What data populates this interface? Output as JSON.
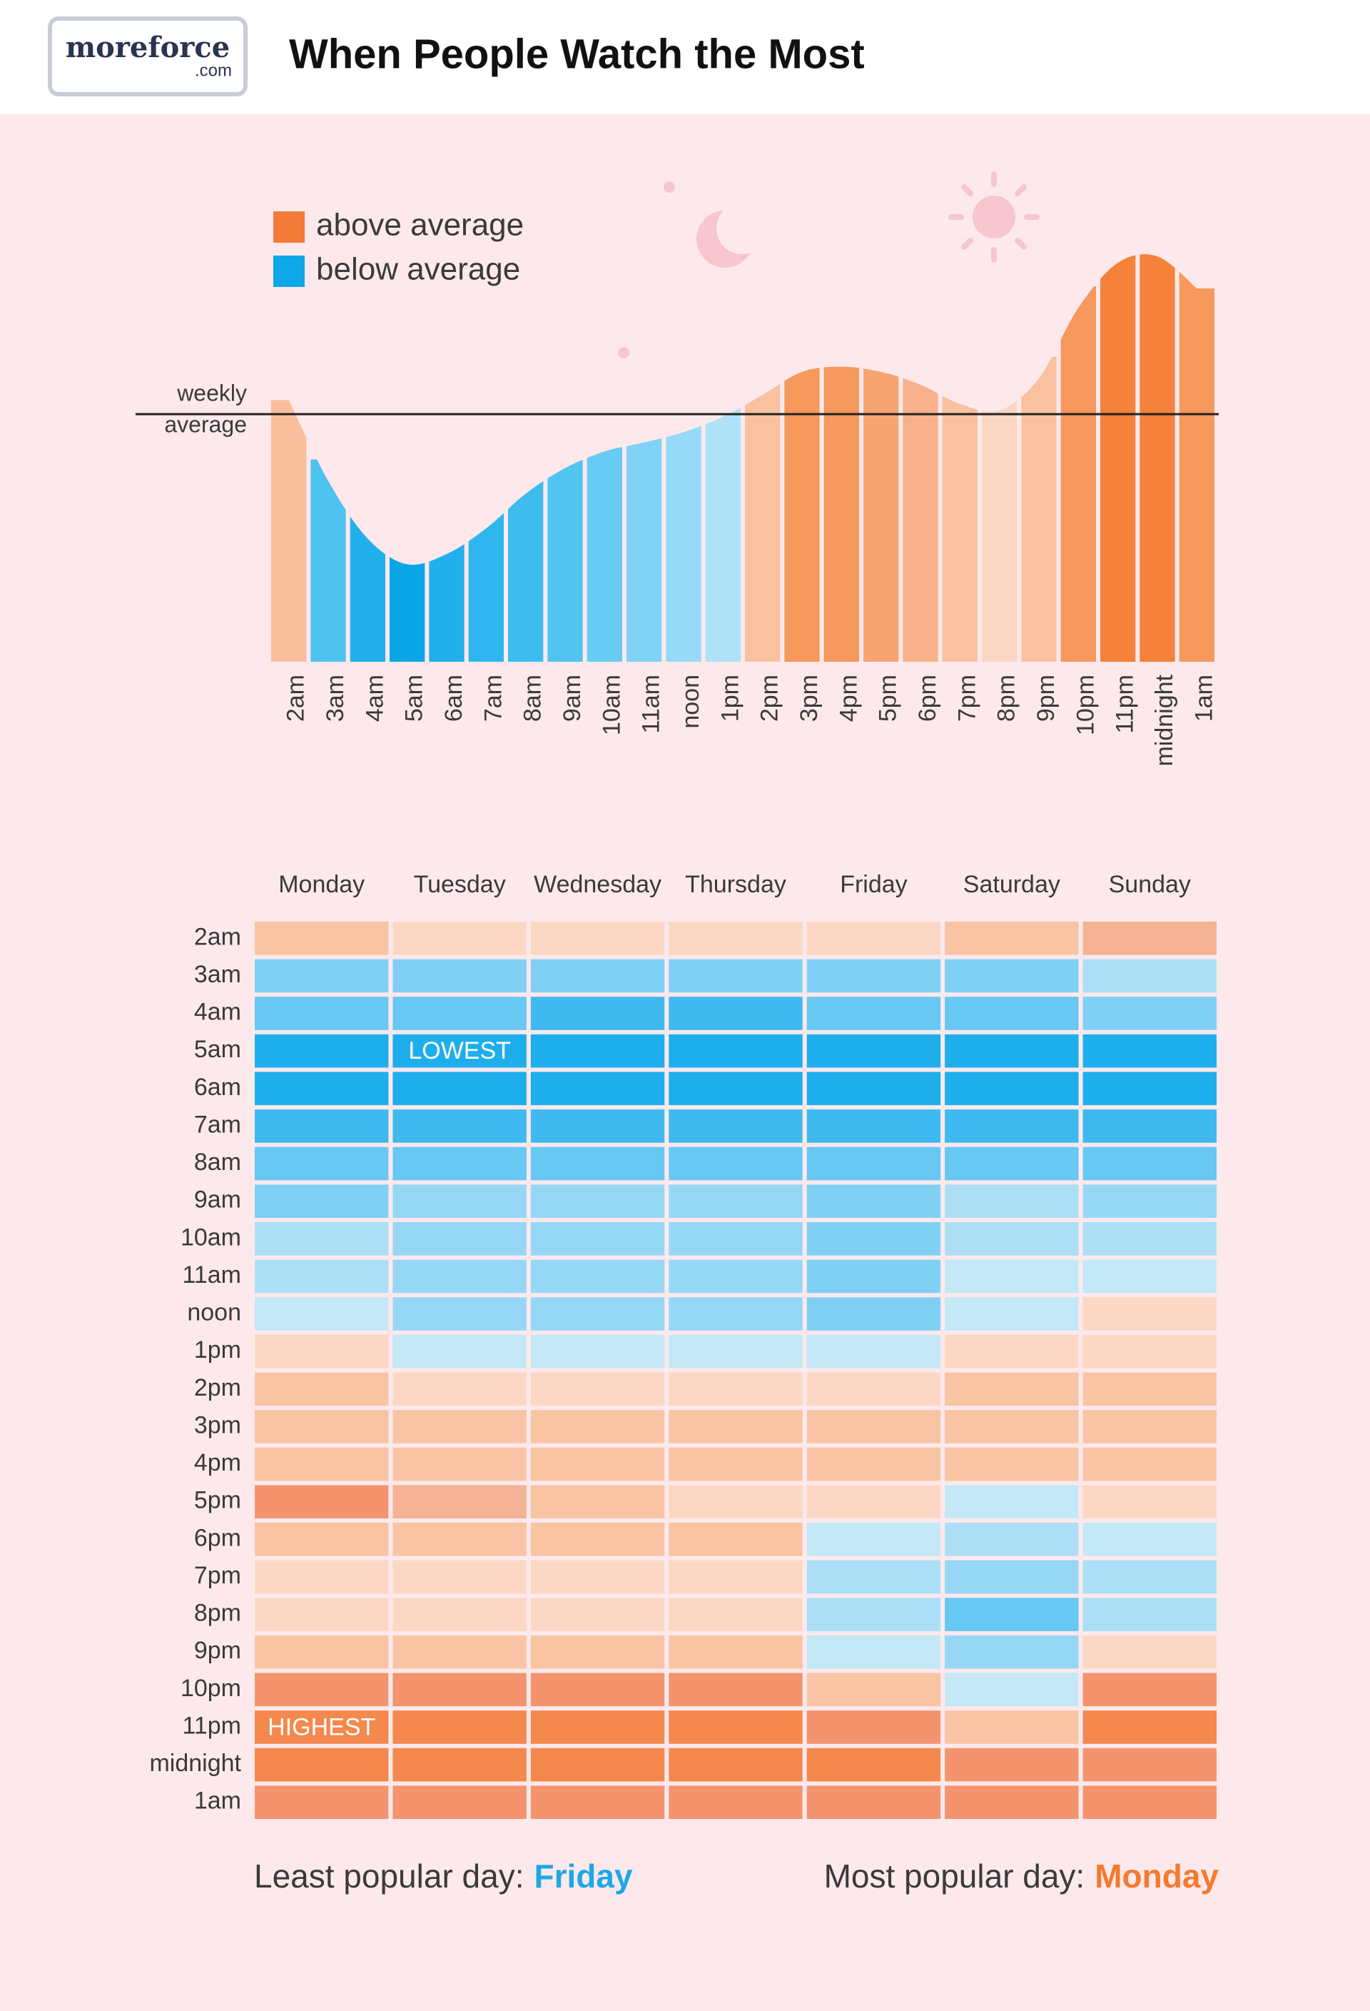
{
  "header": {
    "logo": "moreforce",
    "logo_sub": ".com",
    "title": "When People Watch the Most"
  },
  "chart_data": [
    {
      "type": "bar",
      "categories": [
        "2am",
        "3am",
        "4am",
        "5am",
        "6am",
        "7am",
        "8am",
        "9am",
        "10am",
        "11am",
        "noon",
        "1pm",
        "2pm",
        "3pm",
        "4pm",
        "5pm",
        "6pm",
        "7pm",
        "8pm",
        "9pm",
        "10pm",
        "11pm",
        "midnight",
        "1am"
      ],
      "values": [
        204,
        141,
        96,
        76,
        84,
        104,
        131,
        151,
        164,
        171,
        179,
        191,
        208,
        226,
        230,
        226,
        216,
        201,
        196,
        221,
        276,
        311,
        316,
        291
      ],
      "colors": [
        "#f9bf9c",
        "#4fc3f0",
        "#22b0ec",
        "#0aa6e8",
        "#22b0ec",
        "#2fb6ee",
        "#3dbcf0",
        "#52c4f2",
        "#68cbf4",
        "#7fd3f6",
        "#96daf7",
        "#aee2f8",
        "#f9c1a0",
        "#f7985c",
        "#f7985c",
        "#f8a472",
        "#f8b18a",
        "#f9c1a0",
        "#fbd6c2",
        "#f9c1a0",
        "#f7985c",
        "#f5823a",
        "#f5823a",
        "#f7985c"
      ],
      "ylim": [
        0,
        330
      ],
      "reference_line": {
        "value": 193,
        "label": [
          "weekly",
          "average"
        ]
      },
      "legend": [
        {
          "label": "above average",
          "color": "#f47a3a"
        },
        {
          "label": "below average",
          "color": "#0ea8e8"
        }
      ]
    },
    {
      "type": "heatmap",
      "x": [
        "Monday",
        "Tuesday",
        "Wednesday",
        "Thursday",
        "Friday",
        "Saturday",
        "Sunday"
      ],
      "y": [
        "2am",
        "3am",
        "4am",
        "5am",
        "6am",
        "7am",
        "8am",
        "9am",
        "10am",
        "11am",
        "noon",
        "1pm",
        "2pm",
        "3pm",
        "4pm",
        "5pm",
        "6pm",
        "7pm",
        "8pm",
        "9pm",
        "10pm",
        "11pm",
        "midnight",
        "1am"
      ],
      "values": [
        [
          2,
          1,
          1,
          1,
          1,
          2,
          3
        ],
        [
          -4,
          -4,
          -4,
          -4,
          -4,
          -4,
          -2
        ],
        [
          -5,
          -5,
          -6,
          -6,
          -5,
          -5,
          -4
        ],
        [
          -7,
          -7,
          -7,
          -7,
          -7,
          -7,
          -7
        ],
        [
          -7,
          -7,
          -7,
          -7,
          -7,
          -7,
          -7
        ],
        [
          -6,
          -6,
          -6,
          -6,
          -6,
          -6,
          -6
        ],
        [
          -5,
          -5,
          -5,
          -5,
          -5,
          -5,
          -5
        ],
        [
          -4,
          -3,
          -3,
          -3,
          -4,
          -2,
          -3
        ],
        [
          -2,
          -3,
          -3,
          -3,
          -4,
          -2,
          -2
        ],
        [
          -2,
          -3,
          -3,
          -3,
          -4,
          -1,
          -1
        ],
        [
          -1,
          -3,
          -3,
          -3,
          -4,
          -1,
          1
        ],
        [
          1,
          -1,
          -1,
          -1,
          -1,
          1,
          1
        ],
        [
          2,
          1,
          1,
          1,
          1,
          2,
          2
        ],
        [
          2,
          2,
          2,
          2,
          2,
          2,
          2
        ],
        [
          2,
          2,
          2,
          2,
          2,
          2,
          2
        ],
        [
          4,
          3,
          2,
          1,
          1,
          -1,
          1
        ],
        [
          2,
          2,
          2,
          2,
          -1,
          -2,
          -1
        ],
        [
          1,
          1,
          1,
          1,
          -2,
          -3,
          -2
        ],
        [
          1,
          1,
          1,
          1,
          -2,
          -5,
          -2
        ],
        [
          2,
          2,
          2,
          2,
          -1,
          -3,
          1
        ],
        [
          4,
          4,
          4,
          4,
          2,
          -1,
          4
        ],
        [
          5,
          5,
          5,
          5,
          4,
          2,
          5
        ],
        [
          5,
          5,
          5,
          5,
          5,
          4,
          4
        ],
        [
          4,
          4,
          4,
          4,
          4,
          4,
          4
        ]
      ],
      "palette": {
        "-7": "#1eaeec",
        "-6": "#3fb9f0",
        "-5": "#66c8f3",
        "-4": "#80d0f6",
        "-3": "#97d7f6",
        "-2": "#acdff6",
        "-1": "#c4e8f6",
        "1": "#fcd8c4",
        "2": "#f9c4a4",
        "3": "#f4b394",
        "4": "#f4946f",
        "5": "#f4884d"
      },
      "annotations": [
        {
          "text": "LOWEST",
          "row": "5am",
          "column": "Tuesday"
        },
        {
          "text": "HIGHEST",
          "row": "11pm",
          "column": "Monday"
        }
      ]
    }
  ],
  "footer": {
    "least_label": "Least popular day:",
    "least": "Friday",
    "most_label": "Most popular day:",
    "most": "Monday"
  }
}
